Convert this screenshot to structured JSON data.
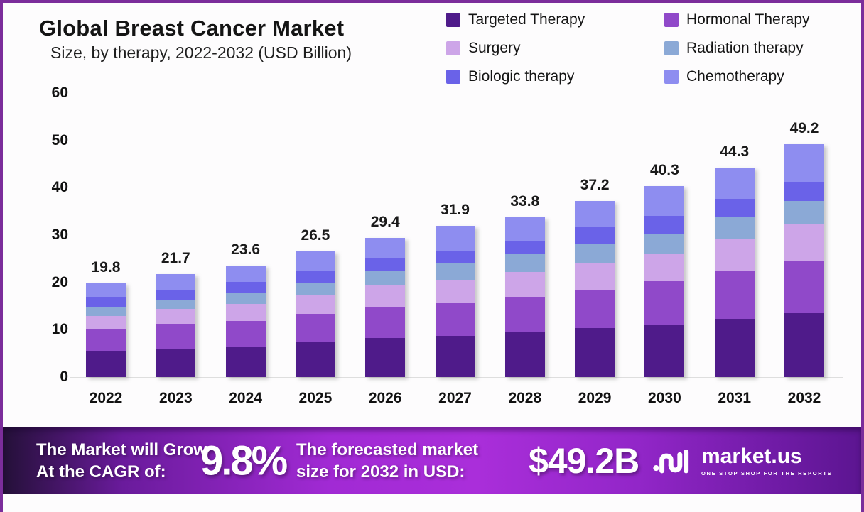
{
  "header": {
    "title": "Global Breast Cancer Market",
    "subtitle": "Size, by therapy, 2022-2032 (USD Billion)"
  },
  "legend": {
    "items": [
      {
        "label": "Targeted Therapy",
        "color": "#4f1b8a"
      },
      {
        "label": "Hormonal Therapy",
        "color": "#9049c9"
      },
      {
        "label": "Surgery",
        "color": "#cda5e8"
      },
      {
        "label": "Radiation therapy",
        "color": "#8ba9d6"
      },
      {
        "label": "Biologic therapy",
        "color": "#6a62e8"
      },
      {
        "label": "Chemotherapy",
        "color": "#8e8df0"
      }
    ]
  },
  "chart_data": {
    "type": "bar",
    "stacked": true,
    "title": "Global Breast Cancer Market",
    "subtitle": "Size, by therapy, 2022-2032 (USD Billion)",
    "unit": "USD Billion",
    "xlabel": "",
    "ylabel": "",
    "ylim": [
      0,
      60
    ],
    "yticks": [
      0,
      10,
      20,
      30,
      40,
      50,
      60
    ],
    "grid": false,
    "legend_position": "top-right",
    "categories": [
      "2022",
      "2023",
      "2024",
      "2025",
      "2026",
      "2027",
      "2028",
      "2029",
      "2030",
      "2031",
      "2032"
    ],
    "totals": [
      19.8,
      21.7,
      23.6,
      26.5,
      29.4,
      31.9,
      33.8,
      37.2,
      40.3,
      44.3,
      49.2
    ],
    "stack_order": "series listed bottom-to-top",
    "series": [
      {
        "name": "Targeted Therapy",
        "color": "#4f1b8a",
        "values": [
          5.5,
          6.0,
          6.5,
          7.4,
          8.3,
          8.7,
          9.5,
          10.3,
          11.0,
          12.3,
          13.5
        ]
      },
      {
        "name": "Hormonal Therapy",
        "color": "#9049c9",
        "values": [
          4.5,
          5.2,
          5.3,
          5.9,
          6.6,
          7.1,
          7.5,
          8.0,
          9.3,
          10.1,
          11.0
        ]
      },
      {
        "name": "Surgery",
        "color": "#cda5e8",
        "values": [
          2.9,
          3.2,
          3.6,
          4.0,
          4.6,
          4.8,
          5.2,
          5.7,
          5.8,
          6.8,
          7.8
        ]
      },
      {
        "name": "Radiation therapy",
        "color": "#8ba9d6",
        "values": [
          1.9,
          1.9,
          2.4,
          2.7,
          2.9,
          3.5,
          3.7,
          4.2,
          4.2,
          4.5,
          4.9
        ]
      },
      {
        "name": "Biologic therapy",
        "color": "#6a62e8",
        "values": [
          2.2,
          2.1,
          2.3,
          2.4,
          2.7,
          2.5,
          2.9,
          3.4,
          3.7,
          3.9,
          4.1
        ]
      },
      {
        "name": "Chemotherapy",
        "color": "#8e8df0",
        "values": [
          2.8,
          3.3,
          3.5,
          4.1,
          4.3,
          5.3,
          5.0,
          5.6,
          6.3,
          6.7,
          7.9
        ]
      }
    ]
  },
  "banner": {
    "cagr_label_line1": "The Market will Grow",
    "cagr_label_line2": "At the CAGR of:",
    "cagr_value": "9.8%",
    "forecast_label_line1": "The forecasted market",
    "forecast_label_line2": "size for 2032 in USD:",
    "forecast_value": "$49.2B",
    "logo_text": "market.us",
    "logo_tagline": "ONE STOP SHOP FOR THE REPORTS"
  },
  "colors": {
    "frame_border": "#7b2d9b",
    "background": "#fdfcfd",
    "label_text": "#1a1a1a",
    "axis_line": "#dedede",
    "banner_bright": "#aa2eda",
    "banner_dark": "#241038"
  }
}
